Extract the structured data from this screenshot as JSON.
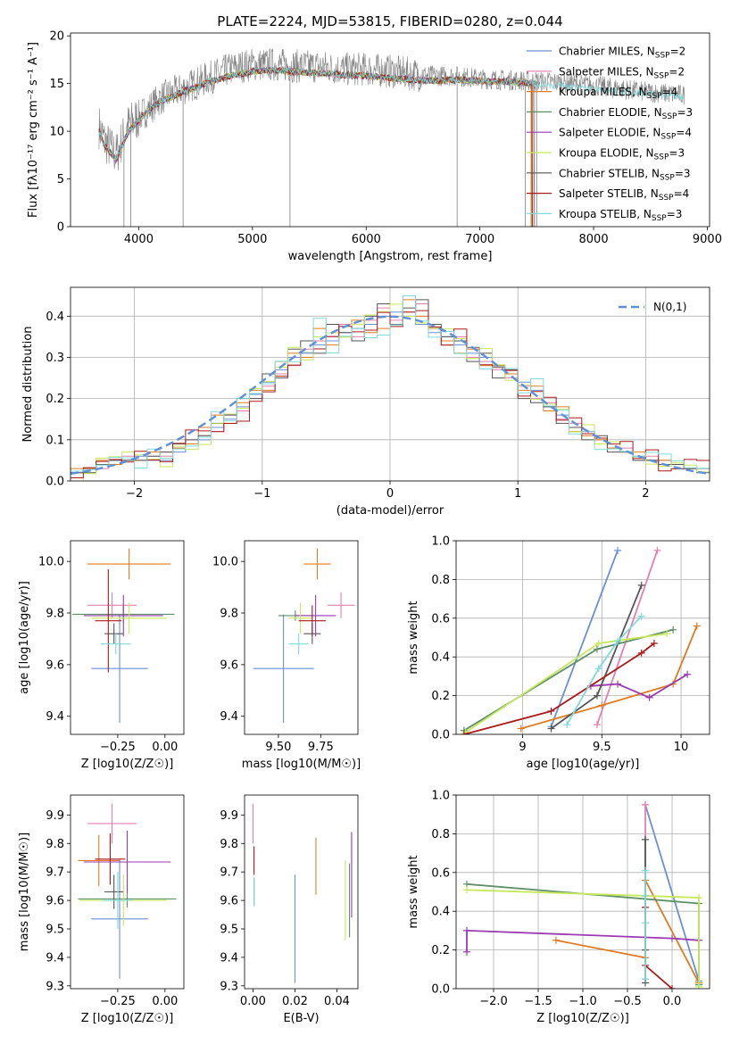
{
  "models": [
    {
      "name": "Chabrier MILES",
      "nssp": "2",
      "color": "#6a8fd8"
    },
    {
      "name": "Salpeter MILES",
      "nssp": "2",
      "color": "#e57fb0"
    },
    {
      "name": "Kroupa MILES",
      "nssp": "4",
      "color": "#e07b22"
    },
    {
      "name": "Chabrier ELODIE",
      "nssp": "3",
      "color": "#5e8f66"
    },
    {
      "name": "Salpeter ELODIE",
      "nssp": "4",
      "color": "#9a3ab0"
    },
    {
      "name": "Kroupa ELODIE",
      "nssp": "3",
      "color": "#c6e85a"
    },
    {
      "name": "Chabrier STELIB",
      "nssp": "3",
      "color": "#555555"
    },
    {
      "name": "Salpeter STELIB",
      "nssp": "4",
      "color": "#aa1a1a"
    },
    {
      "name": "Kroupa STELIB",
      "nssp": "3",
      "color": "#7fdada"
    }
  ],
  "chart_data": [
    {
      "type": "line",
      "title": "PLATE=2224, MJD=53815, FIBERID=0280, z=0.044",
      "xlabel": "wavelength [Angstrom, rest frame]",
      "ylabel": "Flux [fλ10⁻¹⁷ erg cm⁻² s⁻¹ A⁻¹]",
      "xlim": [
        3400,
        9020
      ],
      "ylim": [
        0,
        20.3
      ],
      "xticks": [
        4000,
        5000,
        6000,
        7000,
        8000,
        9000
      ],
      "yticks": [
        0,
        5,
        10,
        15,
        20
      ],
      "legend_position": "right",
      "observed_spectrum": {
        "color": "#808080",
        "x": [
          3650,
          3700,
          3800,
          3900,
          4000,
          4100,
          4200,
          4300,
          4400,
          4500,
          4600,
          4700,
          4800,
          4900,
          5000,
          5200,
          5400,
          5600,
          5800,
          6000,
          6200,
          6400,
          6600,
          6800,
          7000,
          7200,
          7400,
          7600,
          7800,
          8000,
          8200,
          8400,
          8600,
          8800
        ],
        "y": [
          10.5,
          9.0,
          7.5,
          10.5,
          11.5,
          12.5,
          13.5,
          14.0,
          14.5,
          15.0,
          15.5,
          16.0,
          16.5,
          16.8,
          17.0,
          17.0,
          16.8,
          16.8,
          16.5,
          16.5,
          16.3,
          16.0,
          15.8,
          15.8,
          15.5,
          15.4,
          15.3,
          15.2,
          15.0,
          14.8,
          14.5,
          14.2,
          14.0,
          13.8
        ]
      },
      "model_curve": {
        "x": [
          3650,
          3700,
          3800,
          3900,
          4000,
          4100,
          4200,
          4300,
          4400,
          4500,
          4600,
          4700,
          4800,
          4900,
          5000,
          5200,
          5400,
          5600,
          5800,
          6000,
          6200,
          6400,
          6600,
          6800,
          7000,
          7200,
          7400
        ],
        "y": [
          10.0,
          8.5,
          7.0,
          9.8,
          11.2,
          12.3,
          13.2,
          13.6,
          14.2,
          14.6,
          15.1,
          15.4,
          15.8,
          16.0,
          16.3,
          16.4,
          16.2,
          16.1,
          15.9,
          15.8,
          15.6,
          15.4,
          15.3,
          15.4,
          15.3,
          15.2,
          15.1
        ]
      },
      "model_extent_x": [
        7460,
        7460,
        7450,
        7500,
        7480,
        7470,
        7460,
        7460,
        8800
      ],
      "dropouts": [
        {
          "x": 3870,
          "to": 0
        },
        {
          "x": 3930,
          "to": 0
        },
        {
          "x": 4390,
          "to": 0
        },
        {
          "x": 5330,
          "to": 0
        },
        {
          "x": 6800,
          "to": 0
        },
        {
          "x": 7400,
          "to": 0
        }
      ]
    },
    {
      "type": "histogram",
      "xlabel": "(data-model)/error",
      "ylabel": "Normed distribution",
      "xlim": [
        -2.5,
        2.5
      ],
      "ylim": [
        0,
        0.47
      ],
      "xticks": [
        -2,
        -1,
        0,
        1,
        2
      ],
      "xtick_labels": [
        "−2",
        "−1",
        "0",
        "1",
        "2"
      ],
      "yticks": [
        0.0,
        0.1,
        0.2,
        0.3,
        0.4
      ],
      "grid": true,
      "reference": {
        "label": "N(0,1)",
        "color": "#5f8fd6"
      },
      "bin_edges_from": -2.5,
      "bin_width": 0.1,
      "bins": 50,
      "series": [
        {
          "values": [
            0.02,
            0.03,
            0.04,
            0.05,
            0.05,
            0.06,
            0.05,
            0.05,
            0.07,
            0.09,
            0.1,
            0.13,
            0.15,
            0.18,
            0.21,
            0.24,
            0.27,
            0.3,
            0.31,
            0.33,
            0.34,
            0.36,
            0.37,
            0.38,
            0.4,
            0.41,
            0.4,
            0.38,
            0.36,
            0.35,
            0.33,
            0.31,
            0.3,
            0.28,
            0.26,
            0.24,
            0.22,
            0.18,
            0.16,
            0.13,
            0.12,
            0.1,
            0.08,
            0.07,
            0.06,
            0.05,
            0.05,
            0.04,
            0.03,
            0.03
          ]
        },
        {
          "values": [
            0.02,
            0.03,
            0.03,
            0.04,
            0.06,
            0.05,
            0.06,
            0.06,
            0.08,
            0.1,
            0.11,
            0.12,
            0.16,
            0.17,
            0.2,
            0.23,
            0.26,
            0.28,
            0.32,
            0.34,
            0.35,
            0.38,
            0.35,
            0.39,
            0.42,
            0.39,
            0.41,
            0.43,
            0.37,
            0.33,
            0.35,
            0.3,
            0.29,
            0.27,
            0.25,
            0.23,
            0.2,
            0.19,
            0.15,
            0.14,
            0.12,
            0.09,
            0.08,
            0.08,
            0.05,
            0.06,
            0.04,
            0.04,
            0.03,
            0.03
          ]
        },
        {
          "values": [
            0.03,
            0.03,
            0.05,
            0.04,
            0.05,
            0.05,
            0.07,
            0.07,
            0.08,
            0.09,
            0.13,
            0.16,
            0.14,
            0.19,
            0.22,
            0.22,
            0.29,
            0.31,
            0.3,
            0.37,
            0.33,
            0.35,
            0.39,
            0.36,
            0.37,
            0.38,
            0.44,
            0.4,
            0.37,
            0.34,
            0.31,
            0.32,
            0.28,
            0.28,
            0.26,
            0.22,
            0.23,
            0.17,
            0.18,
            0.12,
            0.11,
            0.1,
            0.08,
            0.07,
            0.07,
            0.05,
            0.05,
            0.04,
            0.03,
            0.03
          ]
        },
        {
          "values": [
            0.02,
            0.02,
            0.04,
            0.05,
            0.05,
            0.05,
            0.06,
            0.07,
            0.09,
            0.1,
            0.11,
            0.14,
            0.16,
            0.2,
            0.2,
            0.26,
            0.25,
            0.32,
            0.34,
            0.31,
            0.38,
            0.36,
            0.34,
            0.4,
            0.43,
            0.38,
            0.42,
            0.44,
            0.38,
            0.35,
            0.34,
            0.29,
            0.31,
            0.25,
            0.27,
            0.2,
            0.19,
            0.18,
            0.14,
            0.13,
            0.1,
            0.11,
            0.07,
            0.07,
            0.05,
            0.05,
            0.04,
            0.04,
            0.03,
            0.02
          ]
        }
      ]
    },
    {
      "type": "errorbar",
      "xlabel": "Z [log10(Z/Z☉)]",
      "ylabel": "age  [log10(age/yr)]",
      "xlim": [
        -0.5,
        0.1
      ],
      "ylim": [
        9.33,
        10.08
      ],
      "xticks": [
        -0.25,
        0.0
      ],
      "xtick_labels": [
        "−0.25",
        "0.00"
      ],
      "yticks": [
        9.4,
        9.6,
        9.8,
        10.0
      ],
      "points": [
        {
          "model": 0,
          "x": -0.24,
          "y": 9.585,
          "xerr": 0.15,
          "yerr": 0.21
        },
        {
          "model": 1,
          "x": -0.28,
          "y": 9.83,
          "xerr": 0.13,
          "yerr": 0.05
        },
        {
          "model": 2,
          "x": -0.19,
          "y": 9.99,
          "xerr": 0.22,
          "yerr": 0.06
        },
        {
          "model": 3,
          "x": -0.22,
          "y": 9.795,
          "xerr": 0.27,
          "yerr": 0.03
        },
        {
          "model": 4,
          "x": -0.22,
          "y": 9.79,
          "xerr": 0.21,
          "yerr": 0.08
        },
        {
          "model": 5,
          "x": -0.19,
          "y": 9.78,
          "xerr": 0.2,
          "yerr": 0.06
        },
        {
          "model": 6,
          "x": -0.27,
          "y": 9.72,
          "xerr": 0.05,
          "yerr": 0.04
        },
        {
          "model": 7,
          "x": -0.3,
          "y": 9.77,
          "xerr": 0.07,
          "yerr": 0.2
        },
        {
          "model": 8,
          "x": -0.26,
          "y": 9.68,
          "xerr": 0.08,
          "yerr": 0.04
        }
      ]
    },
    {
      "type": "errorbar",
      "xlabel": "mass [log10(M/M☉)]",
      "ylabel": "",
      "xlim": [
        9.3,
        9.97
      ],
      "ylim": [
        9.33,
        10.08
      ],
      "xticks": [
        9.5,
        9.75
      ],
      "xtick_labels": [
        "9.50",
        "9.75"
      ],
      "yticks": [
        9.4,
        9.6,
        9.8,
        10.0
      ],
      "points": [
        {
          "model": 0,
          "x": 9.53,
          "y": 9.585,
          "xerr": 0.18,
          "yerr": 0.21
        },
        {
          "model": 1,
          "x": 9.87,
          "y": 9.83,
          "xerr": 0.08,
          "yerr": 0.05
        },
        {
          "model": 2,
          "x": 9.73,
          "y": 9.99,
          "xerr": 0.08,
          "yerr": 0.06
        },
        {
          "model": 3,
          "x": 9.6,
          "y": 9.79,
          "xerr": 0.1,
          "yerr": 0.02
        },
        {
          "model": 4,
          "x": 9.72,
          "y": 9.79,
          "xerr": 0.12,
          "yerr": 0.08
        },
        {
          "model": 5,
          "x": 9.63,
          "y": 9.78,
          "xerr": 0.07,
          "yerr": 0.06
        },
        {
          "model": 6,
          "x": 9.7,
          "y": 9.72,
          "xerr": 0.05,
          "yerr": 0.04
        },
        {
          "model": 7,
          "x": 9.7,
          "y": 9.77,
          "xerr": 0.08,
          "yerr": 0.06
        },
        {
          "model": 8,
          "x": 9.62,
          "y": 9.68,
          "xerr": 0.06,
          "yerr": 0.04
        }
      ]
    },
    {
      "type": "line",
      "xlabel": "age  [log10(age/yr)]",
      "ylabel": "mass weight",
      "xlim": [
        8.58,
        10.18
      ],
      "ylim": [
        0,
        1
      ],
      "xticks": [
        9.0,
        9.5,
        10.0
      ],
      "yticks": [
        0.0,
        0.2,
        0.4,
        0.6,
        0.8,
        1.0
      ],
      "grid": true,
      "series": [
        {
          "model": 0,
          "x": [
            9.18,
            9.6
          ],
          "y": [
            0.04,
            0.95
          ]
        },
        {
          "model": 1,
          "x": [
            9.47,
            9.85
          ],
          "y": [
            0.05,
            0.95
          ]
        },
        {
          "model": 2,
          "x": [
            8.99,
            9.5,
            9.95,
            10.1
          ],
          "y": [
            0.03,
            0.15,
            0.26,
            0.56
          ]
        },
        {
          "model": 3,
          "x": [
            8.63,
            9.47,
            9.95
          ],
          "y": [
            0.02,
            0.44,
            0.54
          ]
        },
        {
          "model": 4,
          "x": [
            9.43,
            9.6,
            9.8,
            10.04
          ],
          "y": [
            0.25,
            0.26,
            0.19,
            0.31
          ]
        },
        {
          "model": 5,
          "x": [
            8.64,
            9.48,
            9.91
          ],
          "y": [
            0.01,
            0.47,
            0.52
          ]
        },
        {
          "model": 6,
          "x": [
            9.18,
            9.47,
            9.75
          ],
          "y": [
            0.03,
            0.2,
            0.77
          ]
        },
        {
          "model": 7,
          "x": [
            8.63,
            9.18,
            9.75,
            9.83
          ],
          "y": [
            0.0,
            0.12,
            0.42,
            0.47
          ]
        },
        {
          "model": 8,
          "x": [
            9.28,
            9.48,
            9.6,
            9.75
          ],
          "y": [
            0.05,
            0.34,
            0.48,
            0.61
          ]
        }
      ]
    },
    {
      "type": "errorbar",
      "xlabel": "Z [log10(Z/Z☉)]",
      "ylabel": "mass [log10(M/M☉)]",
      "xlim": [
        -0.5,
        0.1
      ],
      "ylim": [
        9.29,
        9.97
      ],
      "xticks": [
        -0.25,
        0.0
      ],
      "xtick_labels": [
        "−0.25",
        "0.00"
      ],
      "yticks": [
        9.3,
        9.4,
        9.5,
        9.6,
        9.7,
        9.8,
        9.9
      ],
      "points": [
        {
          "model": 0,
          "x": -0.24,
          "y": 9.535,
          "xerr": 0.15,
          "yerr": 0.21
        },
        {
          "model": 1,
          "x": -0.28,
          "y": 9.87,
          "xerr": 0.13,
          "yerr": 0.07
        },
        {
          "model": 2,
          "x": -0.35,
          "y": 9.74,
          "xerr": 0.11,
          "yerr": 0.09
        },
        {
          "model": 3,
          "x": -0.2,
          "y": 9.605,
          "xerr": 0.26,
          "yerr": 0.03
        },
        {
          "model": 4,
          "x": -0.2,
          "y": 9.735,
          "xerr": 0.23,
          "yerr": 0.11
        },
        {
          "model": 5,
          "x": -0.22,
          "y": 9.6,
          "xerr": 0.23,
          "yerr": 0.09
        },
        {
          "model": 6,
          "x": -0.27,
          "y": 9.63,
          "xerr": 0.05,
          "yerr": 0.06
        },
        {
          "model": 7,
          "x": -0.29,
          "y": 9.745,
          "xerr": 0.08,
          "yerr": 0.09
        },
        {
          "model": 8,
          "x": -0.25,
          "y": 9.6,
          "xerr": 0.08,
          "yerr": 0.1
        }
      ]
    },
    {
      "type": "errorbar",
      "xlabel": "E(B-V)",
      "ylabel": "",
      "xlim": [
        -0.004,
        0.05
      ],
      "ylim": [
        9.29,
        9.97
      ],
      "xticks": [
        0.0,
        0.02,
        0.04
      ],
      "xtick_labels": [
        "0.00",
        "0.02",
        "0.04"
      ],
      "yticks": [
        9.3,
        9.4,
        9.5,
        9.6,
        9.7,
        9.8,
        9.9
      ],
      "points": [
        {
          "model": 0,
          "x": 0.02,
          "y": 9.5,
          "xerr": 0,
          "yerr": 0.19
        },
        {
          "model": 1,
          "x": 0.0,
          "y": 9.87,
          "xerr": 0,
          "yerr": 0.07
        },
        {
          "model": 2,
          "x": 0.03,
          "y": 9.72,
          "xerr": 0,
          "yerr": 0.1
        },
        {
          "model": 3,
          "x": 0.046,
          "y": 9.6,
          "xerr": 0,
          "yerr": 0.13
        },
        {
          "model": 4,
          "x": 0.047,
          "y": 9.69,
          "xerr": 0,
          "yerr": 0.15
        },
        {
          "model": 5,
          "x": 0.044,
          "y": 9.6,
          "xerr": 0,
          "yerr": 0.14
        },
        {
          "model": 6,
          "x": 0.0005,
          "y": 9.63,
          "xerr": 0,
          "yerr": 0.05
        },
        {
          "model": 7,
          "x": 0.0005,
          "y": 9.74,
          "xerr": 0,
          "yerr": 0.05
        },
        {
          "model": 8,
          "x": 0.0005,
          "y": 9.63,
          "xerr": 0,
          "yerr": 0.05
        }
      ]
    },
    {
      "type": "line",
      "xlabel": "Z [log10(Z/Z☉)]",
      "ylabel": "mass weight",
      "xlim": [
        -2.42,
        0.42
      ],
      "ylim": [
        0,
        1
      ],
      "xticks": [
        -2.0,
        -1.5,
        -1.0,
        -0.5,
        0.0
      ],
      "xtick_labels": [
        "−2.0",
        "−1.5",
        "−1.0",
        "−0.5",
        "0.0"
      ],
      "yticks": [
        0.0,
        0.2,
        0.4,
        0.6,
        0.8,
        1.0
      ],
      "grid": true,
      "series": [
        {
          "model": 0,
          "x": [
            -0.3,
            0.3
          ],
          "y": [
            0.95,
            0.04
          ]
        },
        {
          "model": 1,
          "x": [
            -0.3,
            -0.3
          ],
          "y": [
            0.95,
            0.05
          ]
        },
        {
          "model": 2,
          "x": [
            -1.3,
            -0.3,
            -0.3,
            0.3
          ],
          "y": [
            0.25,
            0.16,
            0.56,
            0.03
          ]
        },
        {
          "model": 3,
          "x": [
            -2.3,
            0.3,
            0.3
          ],
          "y": [
            0.54,
            0.44,
            0.02
          ]
        },
        {
          "model": 4,
          "x": [
            -2.3,
            -2.3,
            0.0,
            0.3
          ],
          "y": [
            0.19,
            0.3,
            0.26,
            0.25
          ]
        },
        {
          "model": 5,
          "x": [
            -2.3,
            0.3,
            0.3
          ],
          "y": [
            0.51,
            0.47,
            0.01
          ]
        },
        {
          "model": 6,
          "x": [
            -0.3,
            -0.3,
            -0.3
          ],
          "y": [
            0.03,
            0.2,
            0.77
          ]
        },
        {
          "model": 7,
          "x": [
            -0.3,
            -0.3,
            0.0
          ],
          "y": [
            0.42,
            0.12,
            0.0
          ]
        },
        {
          "model": 8,
          "x": [
            -0.3,
            -0.3,
            -0.3,
            -0.3
          ],
          "y": [
            0.05,
            0.34,
            0.48,
            0.61
          ]
        }
      ]
    }
  ]
}
